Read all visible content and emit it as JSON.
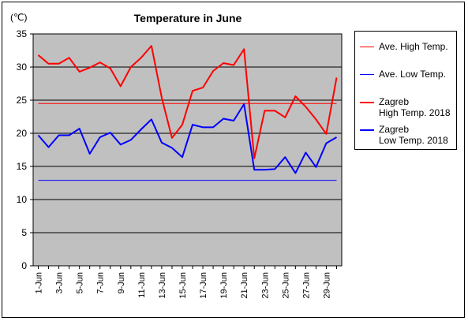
{
  "chart_data": {
    "type": "line",
    "title": "Temperature in June",
    "unit_label": "(℃)",
    "xlabel": "",
    "ylabel": "",
    "ylim": [
      0,
      35
    ],
    "yticks": [
      0,
      5,
      10,
      15,
      20,
      25,
      30,
      35
    ],
    "grid": true,
    "legend_placement": "right",
    "plot_background": "#c0c0c0",
    "categories": [
      "1-Jun",
      "2-Jun",
      "3-Jun",
      "4-Jun",
      "5-Jun",
      "6-Jun",
      "7-Jun",
      "8-Jun",
      "9-Jun",
      "10-Jun",
      "11-Jun",
      "12-Jun",
      "13-Jun",
      "14-Jun",
      "15-Jun",
      "16-Jun",
      "17-Jun",
      "18-Jun",
      "19-Jun",
      "20-Jun",
      "21-Jun",
      "22-Jun",
      "23-Jun",
      "24-Jun",
      "25-Jun",
      "26-Jun",
      "27-Jun",
      "28-Jun",
      "29-Jun",
      "30-Jun"
    ],
    "tick_labels": [
      "1-Jun",
      "3-Jun",
      "5-Jun",
      "7-Jun",
      "9-Jun",
      "11-Jun",
      "13-Jun",
      "15-Jun",
      "17-Jun",
      "19-Jun",
      "21-Jun",
      "23-Jun",
      "25-Jun",
      "27-Jun",
      "29-Jun"
    ],
    "series": [
      {
        "name": "Ave. High Temp.",
        "color": "#ff0000",
        "width": 1,
        "values": [
          24.5,
          24.5,
          24.5,
          24.5,
          24.5,
          24.5,
          24.5,
          24.5,
          24.5,
          24.5,
          24.5,
          24.5,
          24.5,
          24.5,
          24.5,
          24.5,
          24.5,
          24.5,
          24.5,
          24.5,
          24.5,
          24.5,
          24.5,
          24.5,
          24.5,
          24.5,
          24.5,
          24.5,
          24.5,
          24.5
        ]
      },
      {
        "name": "Ave. Low Temp.",
        "color": "#0000ff",
        "width": 1,
        "values": [
          12.9,
          12.9,
          12.9,
          12.9,
          12.9,
          12.9,
          12.9,
          12.9,
          12.9,
          12.9,
          12.9,
          12.9,
          12.9,
          12.9,
          12.9,
          12.9,
          12.9,
          12.9,
          12.9,
          12.9,
          12.9,
          12.9,
          12.9,
          12.9,
          12.9,
          12.9,
          12.9,
          12.9,
          12.9,
          12.9
        ]
      },
      {
        "name": "Zagreb\nHigh Temp. 2018",
        "color": "#ff0000",
        "width": 2,
        "values": [
          31.8,
          30.5,
          30.5,
          31.4,
          29.3,
          29.9,
          30.7,
          29.8,
          27.1,
          30.0,
          31.4,
          33.2,
          25.4,
          19.3,
          21.3,
          26.4,
          26.9,
          29.4,
          30.6,
          30.3,
          32.7,
          16.2,
          23.4,
          23.4,
          22.4,
          25.6,
          24.0,
          22.1,
          19.9,
          28.4
        ]
      },
      {
        "name": "Zagreb\nLow Temp. 2018",
        "color": "#0000ff",
        "width": 2,
        "values": [
          19.7,
          17.9,
          19.7,
          19.7,
          20.7,
          16.9,
          19.4,
          20.1,
          18.3,
          19.0,
          20.6,
          22.1,
          18.6,
          17.8,
          16.4,
          21.3,
          20.9,
          20.9,
          22.2,
          21.9,
          24.4,
          14.5,
          14.5,
          14.6,
          16.4,
          14.0,
          17.1,
          14.9,
          18.5,
          19.4
        ]
      }
    ]
  }
}
